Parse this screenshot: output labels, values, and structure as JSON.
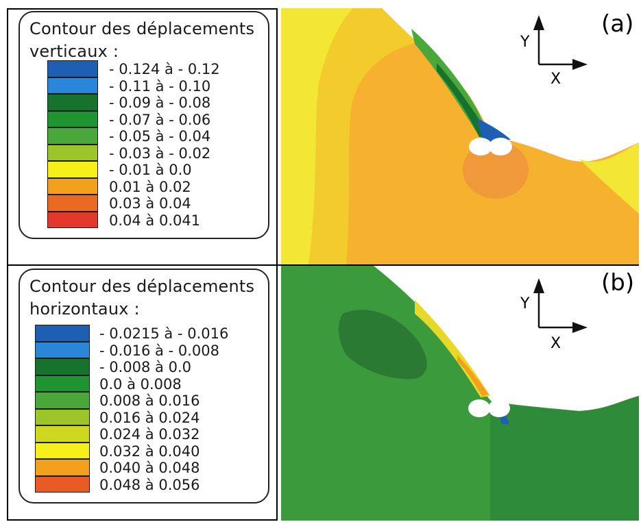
{
  "panel_a": {
    "tag": "(a)",
    "legend_title_line1": "Contour des déplacements",
    "legend_title_line2": "verticaux :",
    "legend": [
      {
        "label": "- 0.124 à - 0.12",
        "color": "#1e5fb4"
      },
      {
        "label": "- 0.11 à - 0.10",
        "color": "#2a86d8"
      },
      {
        "label": "- 0.09 à - 0.08",
        "color": "#17722e"
      },
      {
        "label": "- 0.07 à - 0.06",
        "color": "#1f9433"
      },
      {
        "label": "- 0.05 à - 0.04",
        "color": "#4aa83a"
      },
      {
        "label": "- 0.03 à - 0.02",
        "color": "#9cc52a"
      },
      {
        "label": "- 0.01 à 0.0",
        "color": "#f6ef1a"
      },
      {
        "label": "0.01 à 0.02",
        "color": "#f3a11c"
      },
      {
        "label": "0.03 à 0.04",
        "color": "#ea6a24"
      },
      {
        "label": "0.04 à 0.041",
        "color": "#e3382c"
      }
    ],
    "axis_y": "Y",
    "axis_x": "X",
    "colors": {
      "background": "#f6b12e",
      "surface": "#f3e634",
      "upper_left": "#f1cc2c",
      "bulb": "#ee953a",
      "slope_dark": "#17722e",
      "slope_mid": "#4aa83a",
      "hotspot": "#1e5fb4"
    }
  },
  "panel_b": {
    "tag": "(b)",
    "legend_title_line1": "Contour des déplacements",
    "legend_title_line2": "horizontaux :",
    "legend": [
      {
        "label": "- 0.0215 à - 0.016",
        "color": "#1e5fb4"
      },
      {
        "label": "- 0.016 à - 0.008",
        "color": "#2a86d8"
      },
      {
        "label": "- 0.008 à 0.0",
        "color": "#17722e"
      },
      {
        "label": "0.0 à 0.008",
        "color": "#1f9433"
      },
      {
        "label": "0.008 à 0.016",
        "color": "#4aa83a"
      },
      {
        "label": "0.016 à 0.024",
        "color": "#9cc52a"
      },
      {
        "label": "0.024 à 0.032",
        "color": "#cdd81f"
      },
      {
        "label": "0.032 à 0.040",
        "color": "#f6ef1a"
      },
      {
        "label": "0.040 à 0.048",
        "color": "#f3a11c"
      },
      {
        "label": "0.048 à 0.056",
        "color": "#ea5a24"
      }
    ],
    "axis_y": "Y",
    "axis_x": "X",
    "colors": {
      "background": "#3a9a3c",
      "dark_patch": "#2a7a33",
      "right_block": "#2e8b3a",
      "slope_yellow": "#e8d829",
      "slope_orange": "#f3a11c",
      "hotspot": "#1e5fb4"
    }
  }
}
